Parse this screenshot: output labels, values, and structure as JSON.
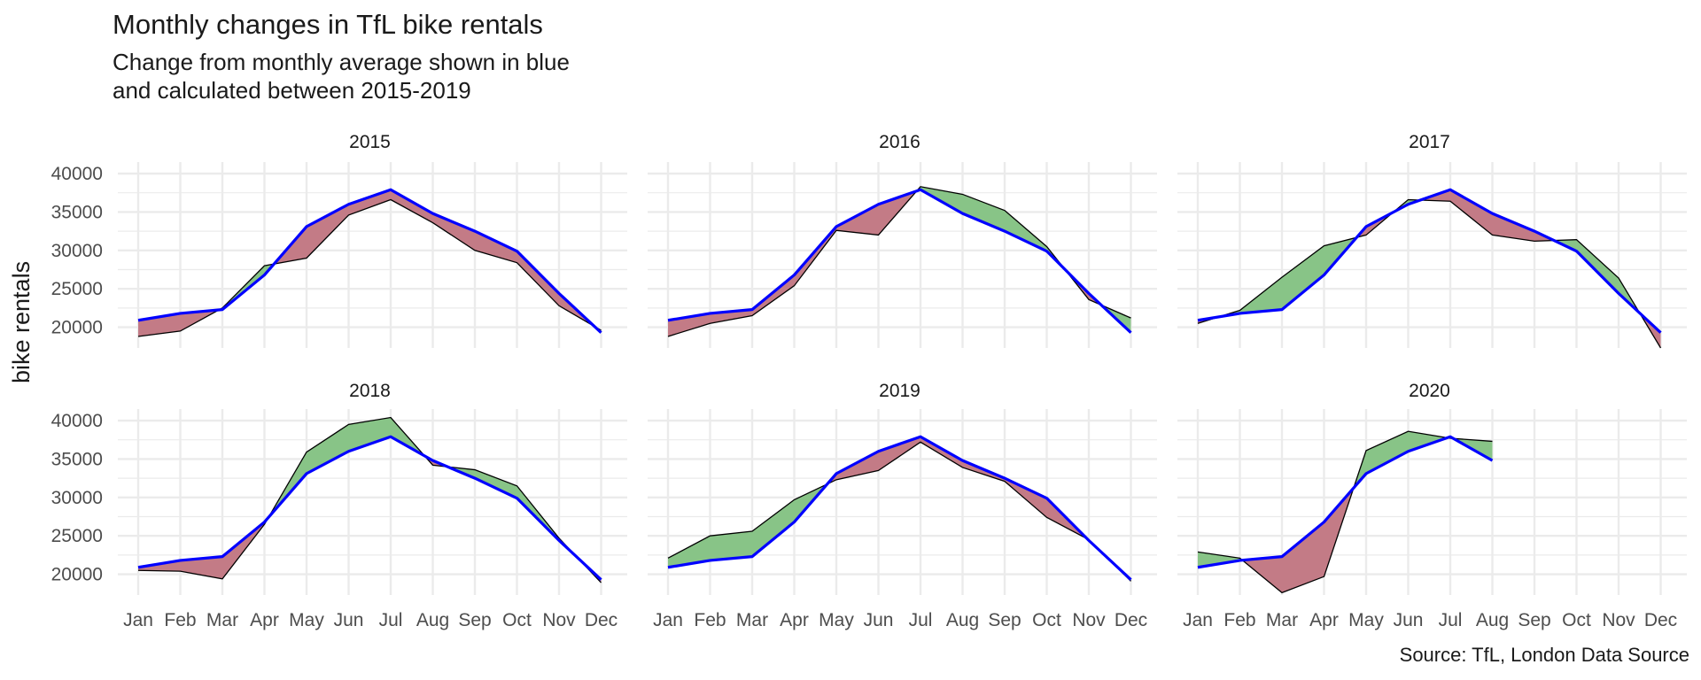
{
  "title": "Monthly changes in TfL bike rentals",
  "subtitle": "Change from monthly average shown in blue\nand calculated between 2015-2019",
  "caption": "Source: TfL, London Data Source",
  "colors": {
    "above": "#88c487",
    "below": "#c37b86",
    "average": "#0000ff",
    "actual": "#000000",
    "grid": "#ebebeb"
  },
  "chart_data": {
    "type": "area",
    "ylabel": "bike rentals",
    "xlabel": "",
    "categories": [
      "Jan",
      "Feb",
      "Mar",
      "Apr",
      "May",
      "Jun",
      "Jul",
      "Aug",
      "Sep",
      "Oct",
      "Nov",
      "Dec"
    ],
    "yticks": [
      20000,
      25000,
      30000,
      35000,
      40000
    ],
    "ylim": [
      17300,
      41500
    ],
    "grid": true,
    "legend": "none",
    "average": [
      20900,
      21800,
      22300,
      26800,
      33100,
      36000,
      37900,
      34800,
      32500,
      29900,
      24400,
      19300
    ],
    "panels": [
      {
        "label": "2015",
        "values": [
          18800,
          19500,
          22500,
          28000,
          29000,
          34600,
          36600,
          33600,
          30000,
          28400,
          22800,
          19600
        ]
      },
      {
        "label": "2016",
        "values": [
          18800,
          20500,
          21500,
          25400,
          32600,
          32000,
          38300,
          37300,
          35200,
          30500,
          23600,
          21200
        ]
      },
      {
        "label": "2017",
        "values": [
          20500,
          22200,
          26500,
          30600,
          32000,
          36600,
          36400,
          32000,
          31200,
          31400,
          26400,
          17300
        ]
      },
      {
        "label": "2018",
        "values": [
          20500,
          20400,
          19400,
          26500,
          35900,
          39500,
          40400,
          34200,
          33600,
          31500,
          24700,
          18900
        ]
      },
      {
        "label": "2019",
        "values": [
          22100,
          25000,
          25600,
          29700,
          32300,
          33500,
          37200,
          33900,
          32100,
          27400,
          24500,
          19100
        ]
      },
      {
        "label": "2020",
        "values": [
          22900,
          22100,
          17600,
          19700,
          36100,
          38600,
          37700,
          37300,
          null,
          null,
          null,
          null
        ]
      }
    ]
  }
}
